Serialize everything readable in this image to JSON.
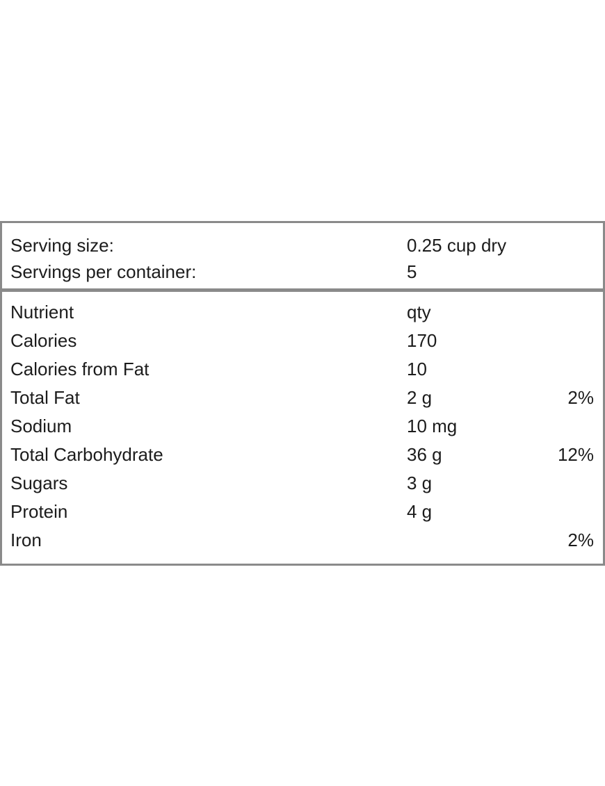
{
  "serving": {
    "size_label": "Serving size:",
    "size_value": "0.25 cup dry",
    "per_container_label": "Servings per container:",
    "per_container_value": "5"
  },
  "table": {
    "header": {
      "nutrient": "Nutrient",
      "qty": "qty"
    },
    "rows": [
      {
        "nutrient": "Calories",
        "qty": "170",
        "dv": ""
      },
      {
        "nutrient": "Calories from Fat",
        "qty": "10",
        "dv": ""
      },
      {
        "nutrient": "Total Fat",
        "qty": "2 g",
        "dv": "2%"
      },
      {
        "nutrient": "Sodium",
        "qty": "10 mg",
        "dv": ""
      },
      {
        "nutrient": "Total Carbohydrate",
        "qty": "36 g",
        "dv": "12%"
      },
      {
        "nutrient": "Sugars",
        "qty": "3 g",
        "dv": ""
      },
      {
        "nutrient": "Protein",
        "qty": "4 g",
        "dv": ""
      },
      {
        "nutrient": "Iron",
        "qty": "",
        "dv": "2%"
      }
    ]
  },
  "colors": {
    "border": "#8a8a8a",
    "text": "#1c1c1c"
  }
}
